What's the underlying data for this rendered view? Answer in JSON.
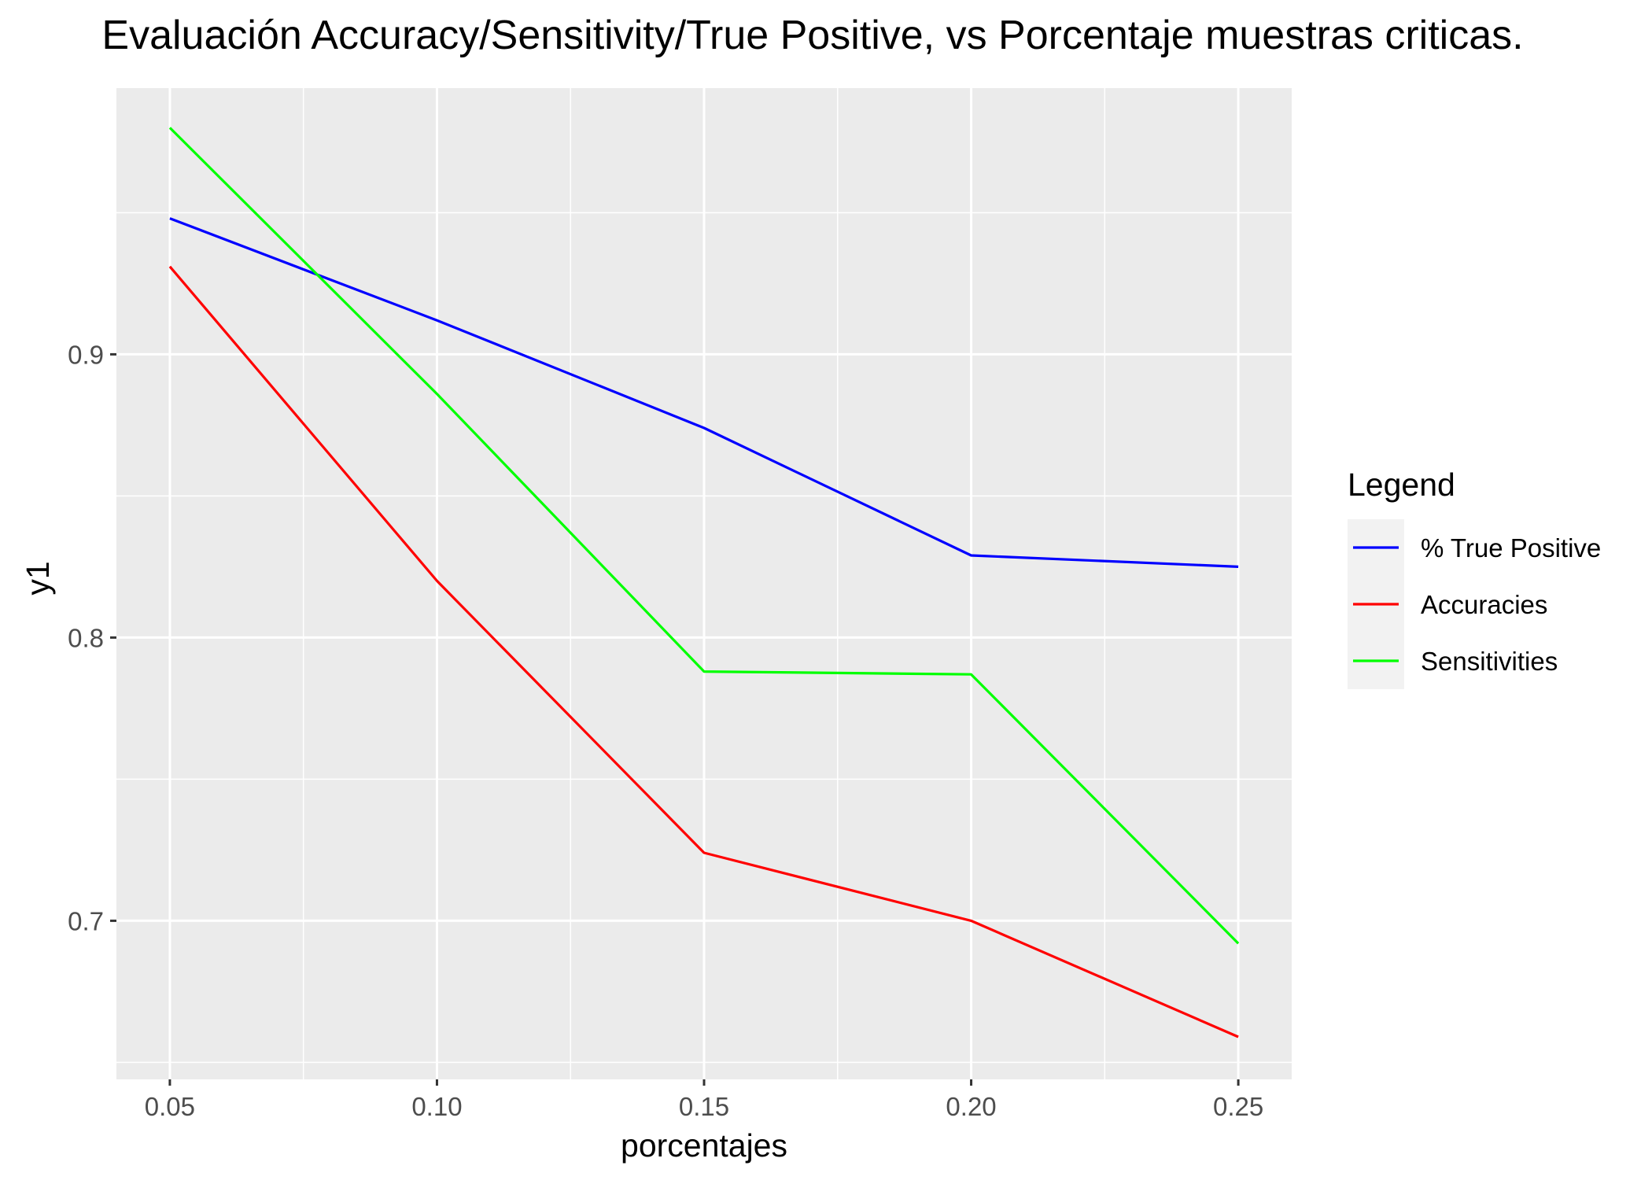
{
  "chart_data": {
    "type": "line",
    "title": "Evaluación Accuracy/Sensitivity/True Positive,  vs Porcentaje muestras criticas.",
    "xlabel": "porcentajes",
    "ylabel": "y1",
    "x": [
      0.05,
      0.1,
      0.15,
      0.2,
      0.25
    ],
    "x_tick_labels": [
      "0.05",
      "0.10",
      "0.15",
      "0.20",
      "0.25"
    ],
    "x_minor_ticks": [
      0.075,
      0.125,
      0.175,
      0.225
    ],
    "y_tick_values": [
      0.7,
      0.8,
      0.9
    ],
    "y_tick_labels": [
      "0.7",
      "0.8",
      "0.9"
    ],
    "y_minor_ticks": [
      0.65,
      0.75,
      0.85,
      0.95
    ],
    "xlim": [
      0.04,
      0.26
    ],
    "ylim": [
      0.644,
      0.994
    ],
    "grid": true,
    "panel_background": "#ebebeb",
    "legend": {
      "title": "Legend",
      "position": "right",
      "entries": [
        {
          "label": "% True Positive",
          "color": "#0000ff"
        },
        {
          "label": "Accuracies",
          "color": "#ff0000"
        },
        {
          "label": "Sensitivities",
          "color": "#00ff00"
        }
      ]
    },
    "series": [
      {
        "name": "% True Positive",
        "color": "#0000ff",
        "values": [
          0.948,
          0.912,
          0.874,
          0.829,
          0.825
        ]
      },
      {
        "name": "Accuracies",
        "color": "#ff0000",
        "values": [
          0.931,
          0.82,
          0.724,
          0.7,
          0.659
        ]
      },
      {
        "name": "Sensitivities",
        "color": "#00ff00",
        "values": [
          0.98,
          0.886,
          0.788,
          0.787,
          0.692
        ]
      }
    ]
  }
}
